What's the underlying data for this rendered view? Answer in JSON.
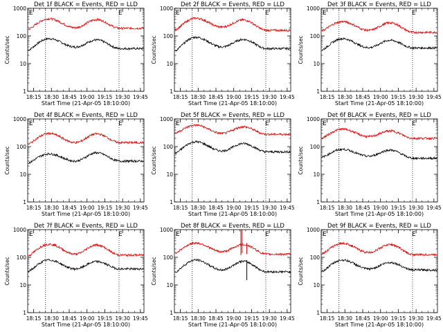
{
  "layout_note_free": true,
  "colors": {
    "events": "#000000",
    "lld": "#e00000",
    "axis": "#000000",
    "dotted": "#000000"
  },
  "chart_data": {
    "type": "line",
    "grid": false,
    "yscale": "log",
    "ylim": [
      1,
      1000
    ],
    "y_ticks": [
      1,
      10,
      100,
      1000
    ],
    "y_tick_labels": [
      "1",
      "10",
      "100",
      "1000"
    ],
    "ylabel": "Counts/sec",
    "xlabel": "Start Time (21-Apr-05 18:10:00)",
    "x_tick_labels": [
      "18:15",
      "18:30",
      "18:45",
      "19:00",
      "19:15",
      "19:30",
      "19:45"
    ],
    "x_ticks_min": [
      5,
      20,
      35,
      50,
      65,
      80,
      95
    ],
    "xlim_min": [
      0,
      98
    ],
    "event_markers_min": [
      15,
      77
    ],
    "marker_labels": [
      "E",
      "E"
    ],
    "panels": [
      {
        "title": "Det 1f BLACK = Events, RED = LLD",
        "series": [
          {
            "name": "Events",
            "base": 30,
            "p1": 80,
            "v1": 40,
            "p2": 72,
            "end": 35
          },
          {
            "name": "LLD",
            "base": 170,
            "p1": 420,
            "v1": 200,
            "p2": 390,
            "end": 190
          }
        ]
      },
      {
        "title": "Det 2f BLACK = Events, RED = LLD",
        "series": [
          {
            "name": "Events",
            "base": 28,
            "p1": 90,
            "v1": 40,
            "p2": 75,
            "end": 35
          },
          {
            "name": "LLD",
            "base": 160,
            "p1": 440,
            "v1": 210,
            "p2": 380,
            "end": 160
          }
        ]
      },
      {
        "title": "Det 3f BLACK = Events, RED = LLD",
        "series": [
          {
            "name": "Events",
            "base": 30,
            "p1": 80,
            "v1": 38,
            "p2": 70,
            "end": 37
          },
          {
            "name": "LLD",
            "base": 150,
            "p1": 330,
            "v1": 160,
            "p2": 300,
            "end": 135
          }
        ]
      },
      {
        "title": "Det 4f BLACK = Events, RED = LLD",
        "series": [
          {
            "name": "Events",
            "base": 25,
            "p1": 55,
            "v1": 30,
            "p2": 60,
            "end": 30
          },
          {
            "name": "LLD",
            "base": 120,
            "p1": 300,
            "v1": 140,
            "p2": 290,
            "end": 140
          }
        ]
      },
      {
        "title": "Det 5f BLACK = Events, RED = LLD",
        "series": [
          {
            "name": "Events",
            "base": 55,
            "p1": 150,
            "v1": 70,
            "p2": 130,
            "end": 65
          },
          {
            "name": "LLD",
            "base": 300,
            "p1": 600,
            "v1": 300,
            "p2": 520,
            "end": 280
          }
        ]
      },
      {
        "title": "Det 6f BLACK = Events, RED = LLD",
        "series": [
          {
            "name": "Events",
            "base": 40,
            "p1": 80,
            "v1": 45,
            "p2": 75,
            "end": 38
          },
          {
            "name": "LLD",
            "base": 200,
            "p1": 430,
            "v1": 230,
            "p2": 370,
            "end": 200
          }
        ]
      },
      {
        "title": "Det 7f BLACK = Events, RED = LLD",
        "series": [
          {
            "name": "Events",
            "base": 30,
            "p1": 80,
            "v1": 38,
            "p2": 70,
            "end": 38
          },
          {
            "name": "LLD",
            "base": 110,
            "p1": 300,
            "v1": 130,
            "p2": 280,
            "end": 120
          }
        ]
      },
      {
        "title": "Det 8f BLACK = Events, RED = LLD",
        "series": [
          {
            "name": "Events",
            "base": 28,
            "p1": 80,
            "v1": 35,
            "p2": 72,
            "end": 30
          },
          {
            "name": "LLD",
            "base": 140,
            "p1": 330,
            "v1": 160,
            "p2": 290,
            "end": 130
          }
        ],
        "spikes_min": [
          57,
          61
        ]
      },
      {
        "title": "Det 9f BLACK = Events, RED = LLD",
        "series": [
          {
            "name": "Events",
            "base": 30,
            "p1": 80,
            "v1": 38,
            "p2": 65,
            "end": 35
          },
          {
            "name": "LLD",
            "base": 130,
            "p1": 320,
            "v1": 150,
            "p2": 290,
            "end": 125
          }
        ]
      }
    ]
  }
}
